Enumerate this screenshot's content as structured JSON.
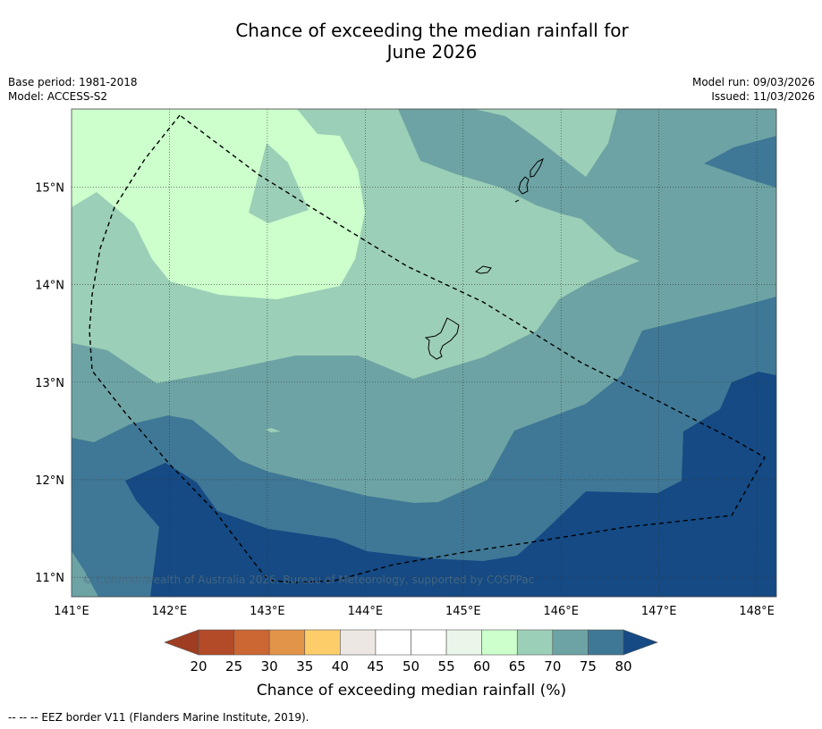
{
  "title": {
    "line1": "Chance of exceeding the median rainfall for",
    "line2": "June 2026"
  },
  "meta": {
    "base_period": "Base period: 1981-2018",
    "model": "Model: ACCESS-S2",
    "model_run": "Model run: 09/03/2026",
    "issued": "Issued: 11/03/2026"
  },
  "map": {
    "lon_ticks": [
      "141°E",
      "142°E",
      "143°E",
      "144°E",
      "145°E",
      "146°E",
      "147°E",
      "148°E"
    ],
    "lat_ticks": [
      "15°N",
      "14°N",
      "13°N",
      "12°N",
      "11°N"
    ],
    "lon_range": [
      141.0,
      148.2
    ],
    "lat_range": [
      10.8,
      15.8
    ],
    "copyright": "© Commonwealth of Australia 2026, Bureau of Meteorology, supported by COSPPac"
  },
  "colorbar": {
    "labels": [
      "20",
      "25",
      "30",
      "35",
      "40",
      "45",
      "50",
      "55",
      "60",
      "65",
      "70",
      "75",
      "80"
    ],
    "colors": [
      "#b34b29",
      "#cc6633",
      "#e29449",
      "#fccd69",
      "#ece7e2",
      "#ffffff",
      "#ffffff",
      "#eaf6ea",
      "#ccffcc",
      "#9ccfb7",
      "#6da3a4",
      "#3f7896"
    ],
    "low_arrow_color": "#9e3d22",
    "high_arrow_color": "#154a84",
    "title": "Chance of exceeding median rainfall (%)"
  },
  "palette": {
    "c60": "#ccffcc",
    "c65": "#9ccfb7",
    "c70": "#6da3a4",
    "c75": "#3f7896",
    "c80": "#154a84"
  },
  "footer": {
    "legend": "--  --  -- EEZ border V11 (Flanders Marine Institute, 2019)."
  }
}
